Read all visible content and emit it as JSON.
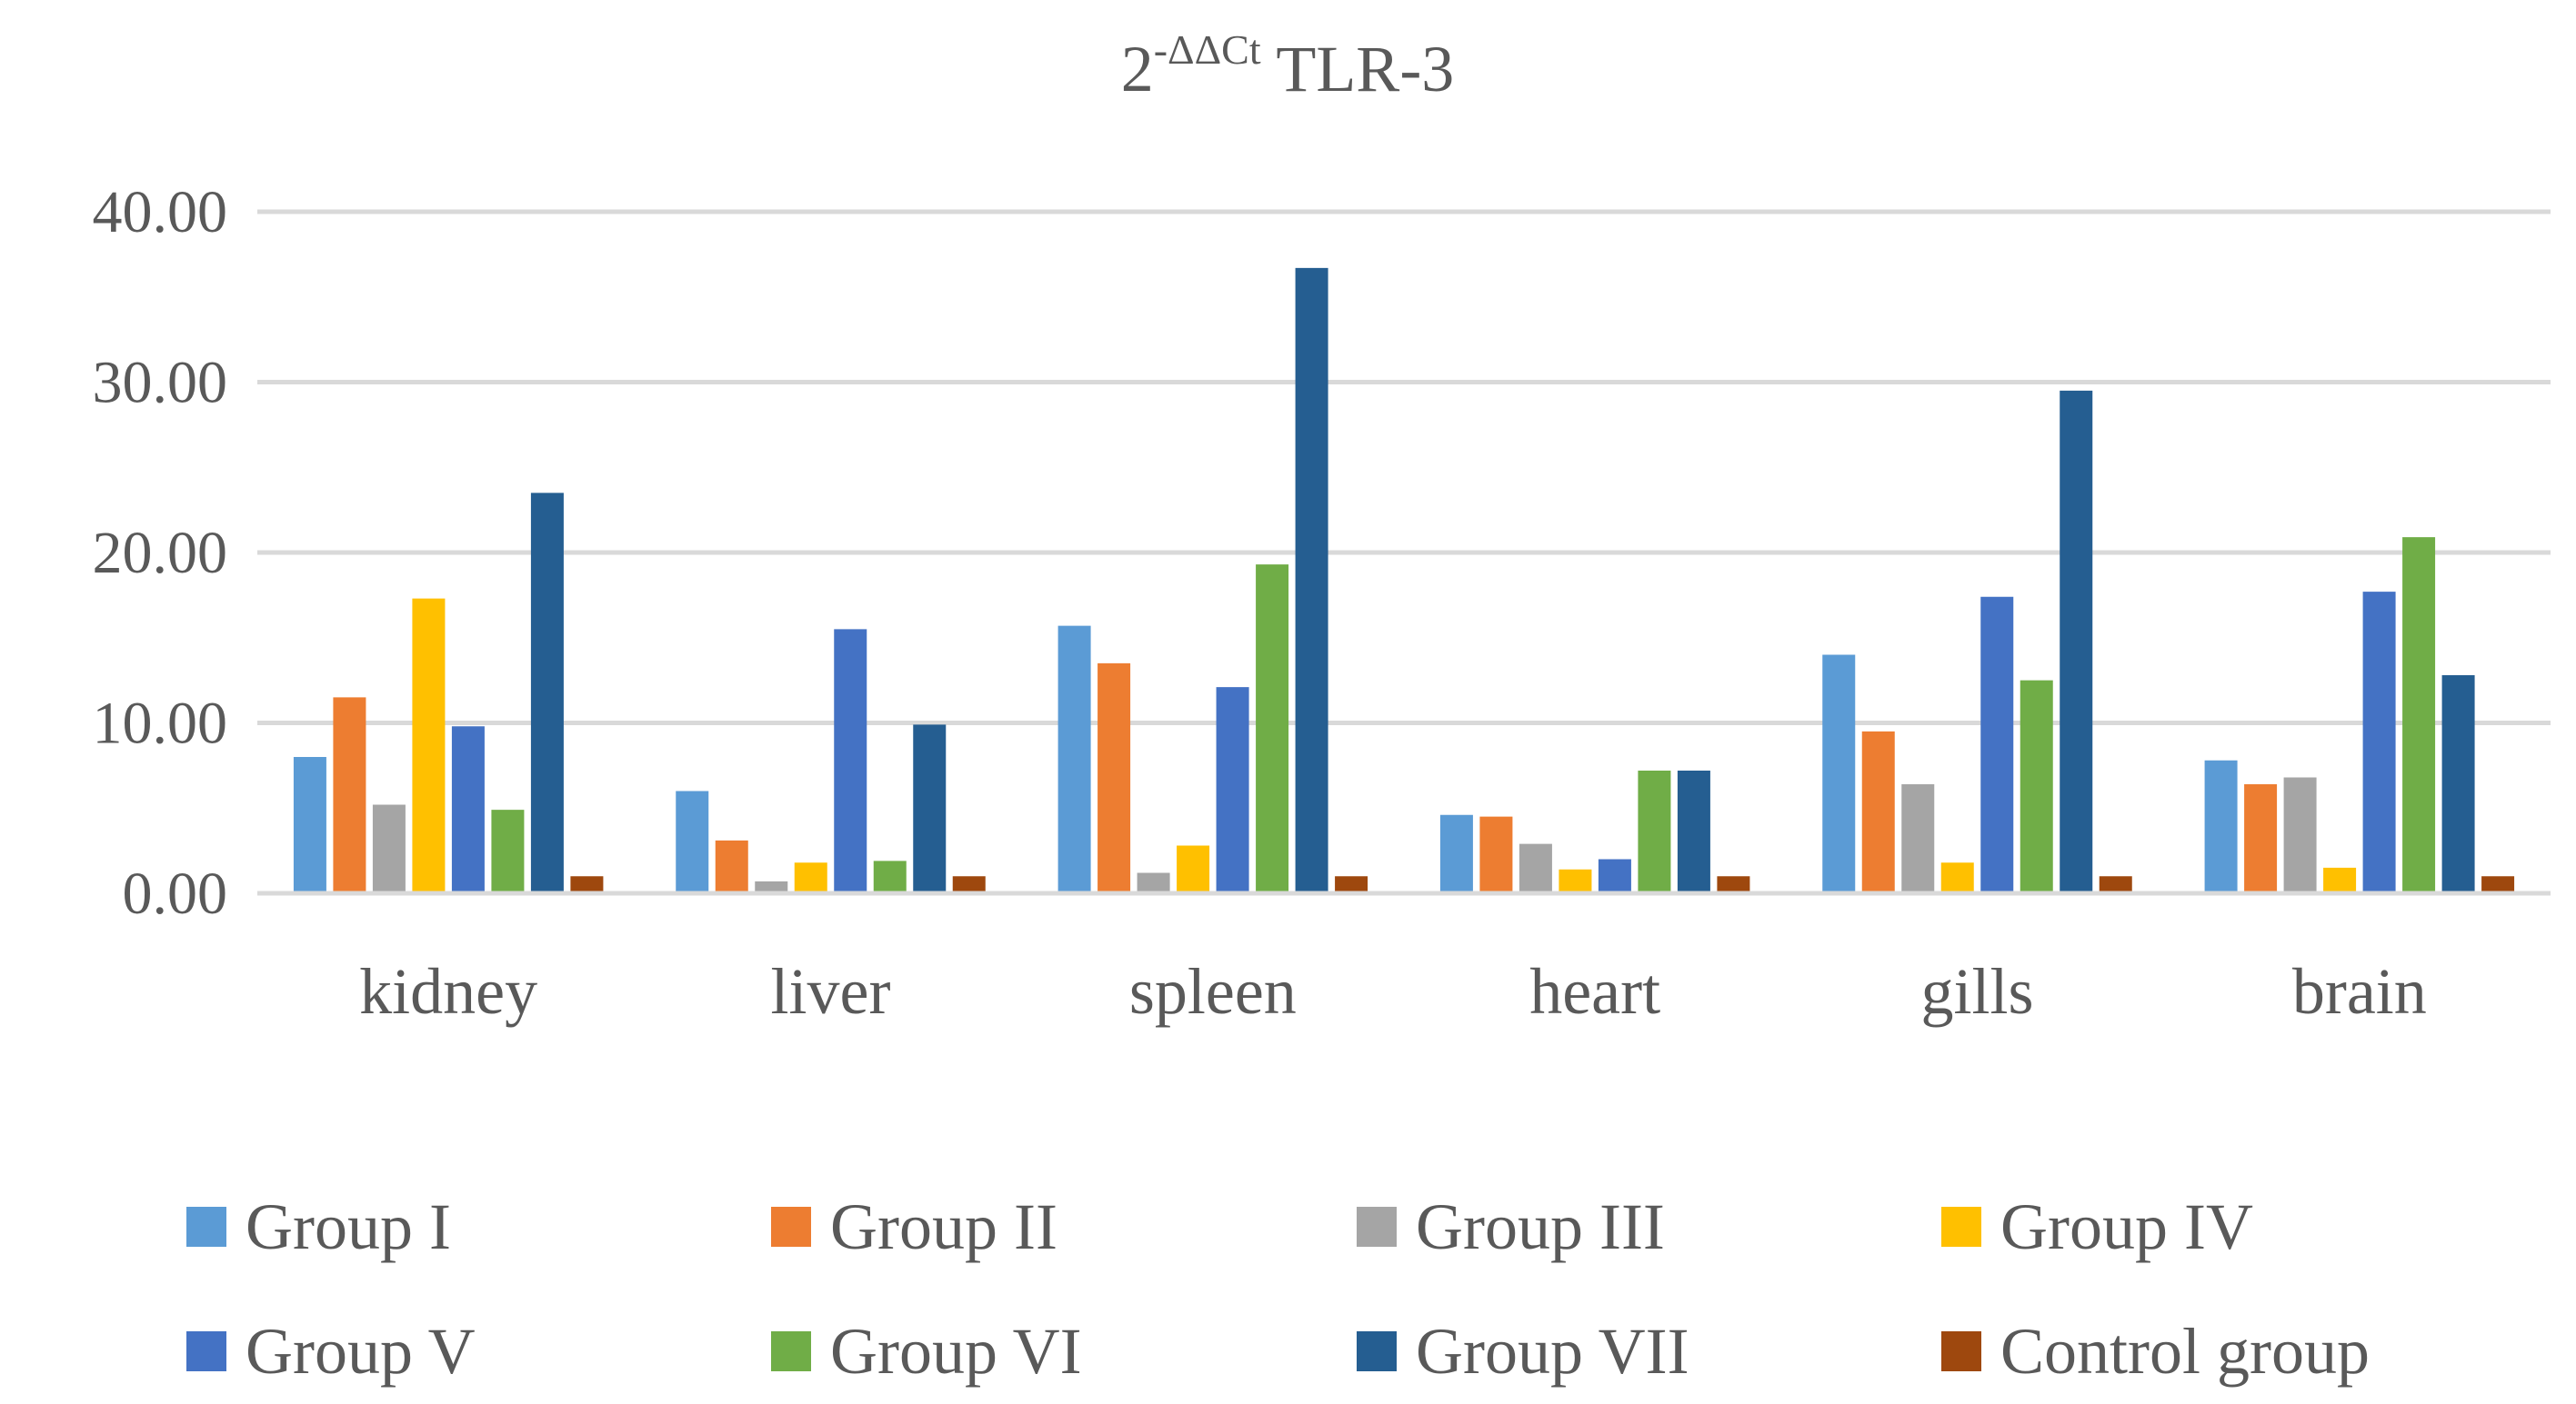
{
  "chart_data": {
    "type": "bar",
    "title": {
      "base": "2",
      "superscript": "-ΔΔCt",
      "suffix": " TLR-3"
    },
    "xlabel": "",
    "ylabel": "",
    "ylim": [
      0,
      40
    ],
    "y_ticks": [
      {
        "value": 0,
        "label": "0.00"
      },
      {
        "value": 10,
        "label": "10.00"
      },
      {
        "value": 20,
        "label": "20.00"
      },
      {
        "value": 30,
        "label": "30.00"
      },
      {
        "value": 40,
        "label": "40.00"
      }
    ],
    "grid": true,
    "legend_position": "bottom",
    "categories": [
      "kidney",
      "liver",
      "spleen",
      "heart",
      "gills",
      "brain"
    ],
    "series": [
      {
        "name": "Group I",
        "color": "#5B9BD5",
        "values": [
          8.0,
          6.0,
          15.7,
          4.6,
          14.0,
          7.8
        ]
      },
      {
        "name": "Group II",
        "color": "#ED7D31",
        "values": [
          11.5,
          3.1,
          13.5,
          4.5,
          9.5,
          6.4
        ]
      },
      {
        "name": "Group III",
        "color": "#A5A5A5",
        "values": [
          5.2,
          0.7,
          1.2,
          2.9,
          6.4,
          6.8
        ]
      },
      {
        "name": "Group IV",
        "color": "#FFC000",
        "values": [
          17.3,
          1.8,
          2.8,
          1.4,
          1.8,
          1.5
        ]
      },
      {
        "name": "Group V",
        "color": "#4472C4",
        "values": [
          9.8,
          15.5,
          12.1,
          2.0,
          17.4,
          17.7
        ]
      },
      {
        "name": "Group VI",
        "color": "#70AD47",
        "values": [
          4.9,
          1.9,
          19.3,
          7.2,
          12.5,
          20.9
        ]
      },
      {
        "name": "Group VII",
        "color": "#255E91",
        "values": [
          23.5,
          9.9,
          36.7,
          7.2,
          29.5,
          12.8
        ]
      },
      {
        "name": "Control group",
        "color": "#9E480E",
        "values": [
          1.0,
          1.0,
          1.0,
          1.0,
          1.0,
          1.0
        ]
      }
    ]
  }
}
